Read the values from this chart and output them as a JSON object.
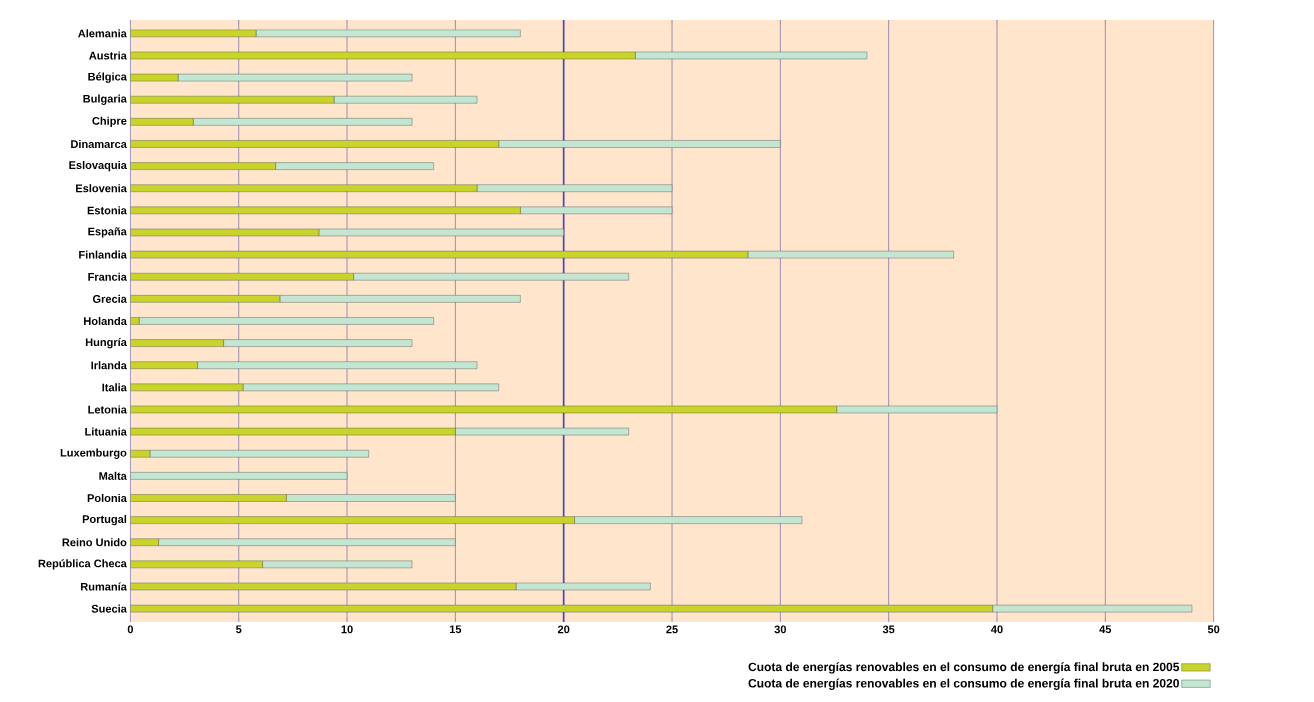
{
  "chart_data": {
    "type": "bar",
    "orientation": "horizontal",
    "stacked": true,
    "categories": [
      "Alemania",
      "Austria",
      "Bélgica",
      "Bulgaria",
      "Chipre",
      "Dinamarca",
      "Eslovaquia",
      "Eslovenia",
      "Estonia",
      "España",
      "Finlandia",
      "Francia",
      "Grecia",
      "Holanda",
      "Hungría",
      "Irlanda",
      "Italia",
      "Letonia",
      "Lituania",
      "Luxemburgo",
      "Malta",
      "Polonia",
      "Portugal",
      "Reino Unido",
      "República Checa",
      "Rumanía",
      "Suecia"
    ],
    "series": [
      {
        "name": "Cuota de energías renovables en el consumo de energía final bruta en 2005",
        "color": "#c8d42a",
        "values": [
          5.8,
          23.3,
          2.2,
          9.4,
          2.9,
          17,
          6.7,
          16,
          18,
          8.7,
          28.5,
          10.3,
          6.9,
          0.4,
          4.3,
          3.1,
          5.2,
          32.6,
          15,
          0.9,
          0,
          7.2,
          20.5,
          1.3,
          6.1,
          17.8,
          39.8
        ]
      },
      {
        "name": "Cuota de energías renovables en el consumo de energía final bruta en 2020",
        "color": "#c2e6d2",
        "values": [
          12.2,
          10.7,
          10.8,
          6.6,
          10.1,
          13,
          7.3,
          9,
          7,
          11.3,
          9.5,
          12.7,
          11.1,
          13.6,
          8.7,
          12.9,
          11.8,
          7.4,
          8,
          10.1,
          10,
          7.8,
          10.5,
          13.7,
          6.9,
          6.2,
          9.2
        ]
      }
    ],
    "xlim": [
      0,
      50
    ],
    "xticks": [
      0,
      5,
      10,
      15,
      20,
      25,
      30,
      35,
      40,
      45,
      50
    ],
    "grid": "x",
    "legend": "bottom right",
    "ref_lines": [
      {
        "axis": "x",
        "value": 20
      }
    ]
  }
}
